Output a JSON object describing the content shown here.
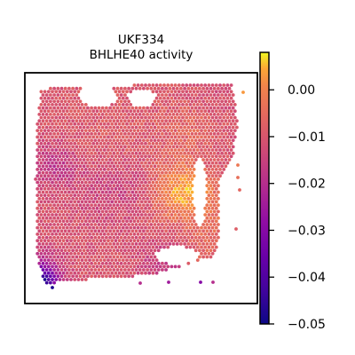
{
  "chart_data": {
    "type": "heatmap",
    "subtype": "spatial-spot-map",
    "title": [
      "UKF334",
      "BHLHE40 activity"
    ],
    "colormap": "plasma",
    "colorbar": {
      "min": -0.05,
      "max": 0.008,
      "ticks": [
        0.0,
        -0.01,
        -0.02,
        -0.03,
        -0.04,
        -0.05
      ],
      "tick_labels": [
        "0.00",
        "−0.01",
        "−0.02",
        "−0.03",
        "−0.04",
        "−0.05"
      ]
    },
    "value_summary": {
      "typical_range": [
        -0.025,
        0.0
      ],
      "dominant_value": -0.01,
      "lowest_values_region": "bottom-left corner",
      "lowest_value": -0.048
    },
    "axes_visible": false,
    "grid": false,
    "legend": "colorbar-right"
  }
}
